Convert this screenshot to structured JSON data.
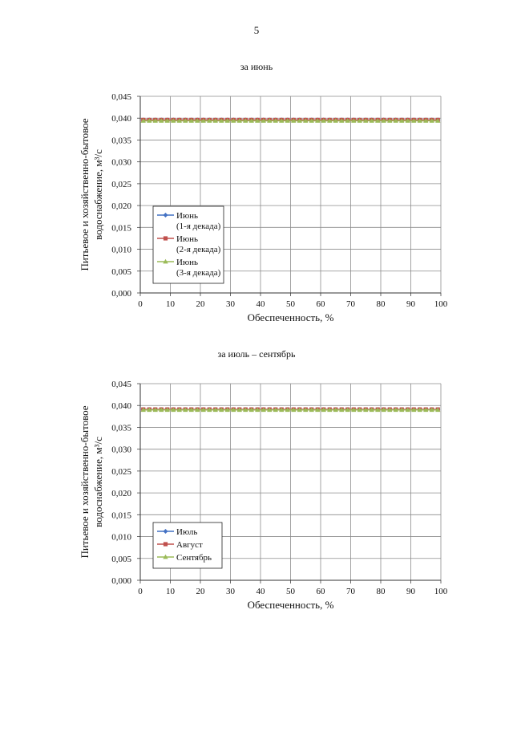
{
  "page": {
    "number": "5"
  },
  "chart_data": [
    {
      "type": "line",
      "title": "за июнь",
      "xlabel": "Обеспеченность, %",
      "ylabel_line1": "Питьевое и хозяйственно-бытовое",
      "ylabel_line2": "водоснабжение, м³/с",
      "xlim": [
        0,
        100
      ],
      "ylim": [
        0,
        0.045
      ],
      "xticks": [
        "0",
        "10",
        "20",
        "30",
        "40",
        "50",
        "60",
        "70",
        "80",
        "90",
        "100"
      ],
      "yticks": [
        "0,000",
        "0,005",
        "0,010",
        "0,015",
        "0,020",
        "0,025",
        "0,030",
        "0,035",
        "0,040",
        "0,045"
      ],
      "grid": true,
      "legend_position": "lower-left",
      "x": [
        1,
        3,
        5,
        7,
        9,
        11,
        13,
        15,
        17,
        19,
        21,
        23,
        25,
        27,
        29,
        31,
        33,
        35,
        37,
        39,
        41,
        43,
        45,
        47,
        49,
        51,
        53,
        55,
        57,
        59,
        61,
        63,
        65,
        67,
        69,
        71,
        73,
        75,
        77,
        79,
        81,
        83,
        85,
        87,
        89,
        91,
        93,
        95,
        97,
        99
      ],
      "series": [
        {
          "name": "Июнь (1-я декада)",
          "legend_lines": [
            "Июнь",
            "(1-я декада)"
          ],
          "color": "#4472c4",
          "marker": "diamond",
          "value": 0.0396
        },
        {
          "name": "Июнь (2-я декада)",
          "legend_lines": [
            "Июнь",
            "(2-я декада)"
          ],
          "color": "#c0504d",
          "marker": "square",
          "value": 0.0396
        },
        {
          "name": "Июнь (3-я декада)",
          "legend_lines": [
            "Июнь",
            "(3-я декада)"
          ],
          "color": "#9bbb59",
          "marker": "triangle",
          "value": 0.0394
        }
      ]
    },
    {
      "type": "line",
      "title": "за июль – сентябрь",
      "xlabel": "Обеспеченность, %",
      "ylabel_line1": "Питьевое и хозяйственно-бытовое",
      "ylabel_line2": "водоснабжение, м³/с",
      "xlim": [
        0,
        100
      ],
      "ylim": [
        0,
        0.045
      ],
      "xticks": [
        "0",
        "10",
        "20",
        "30",
        "40",
        "50",
        "60",
        "70",
        "80",
        "90",
        "100"
      ],
      "yticks": [
        "0,000",
        "0,005",
        "0,010",
        "0,015",
        "0,020",
        "0,025",
        "0,030",
        "0,035",
        "0,040",
        "0,045"
      ],
      "grid": true,
      "legend_position": "lower-left",
      "x": [
        1,
        3,
        5,
        7,
        9,
        11,
        13,
        15,
        17,
        19,
        21,
        23,
        25,
        27,
        29,
        31,
        33,
        35,
        37,
        39,
        41,
        43,
        45,
        47,
        49,
        51,
        53,
        55,
        57,
        59,
        61,
        63,
        65,
        67,
        69,
        71,
        73,
        75,
        77,
        79,
        81,
        83,
        85,
        87,
        89,
        91,
        93,
        95,
        97,
        99
      ],
      "series": [
        {
          "name": "Июль",
          "legend_lines": [
            "Июль"
          ],
          "color": "#4472c4",
          "marker": "diamond",
          "value": 0.0391
        },
        {
          "name": "Август",
          "legend_lines": [
            "Август"
          ],
          "color": "#c0504d",
          "marker": "square",
          "value": 0.0391
        },
        {
          "name": "Сентябрь",
          "legend_lines": [
            "Сентябрь"
          ],
          "color": "#9bbb59",
          "marker": "triangle",
          "value": 0.039
        }
      ]
    }
  ]
}
